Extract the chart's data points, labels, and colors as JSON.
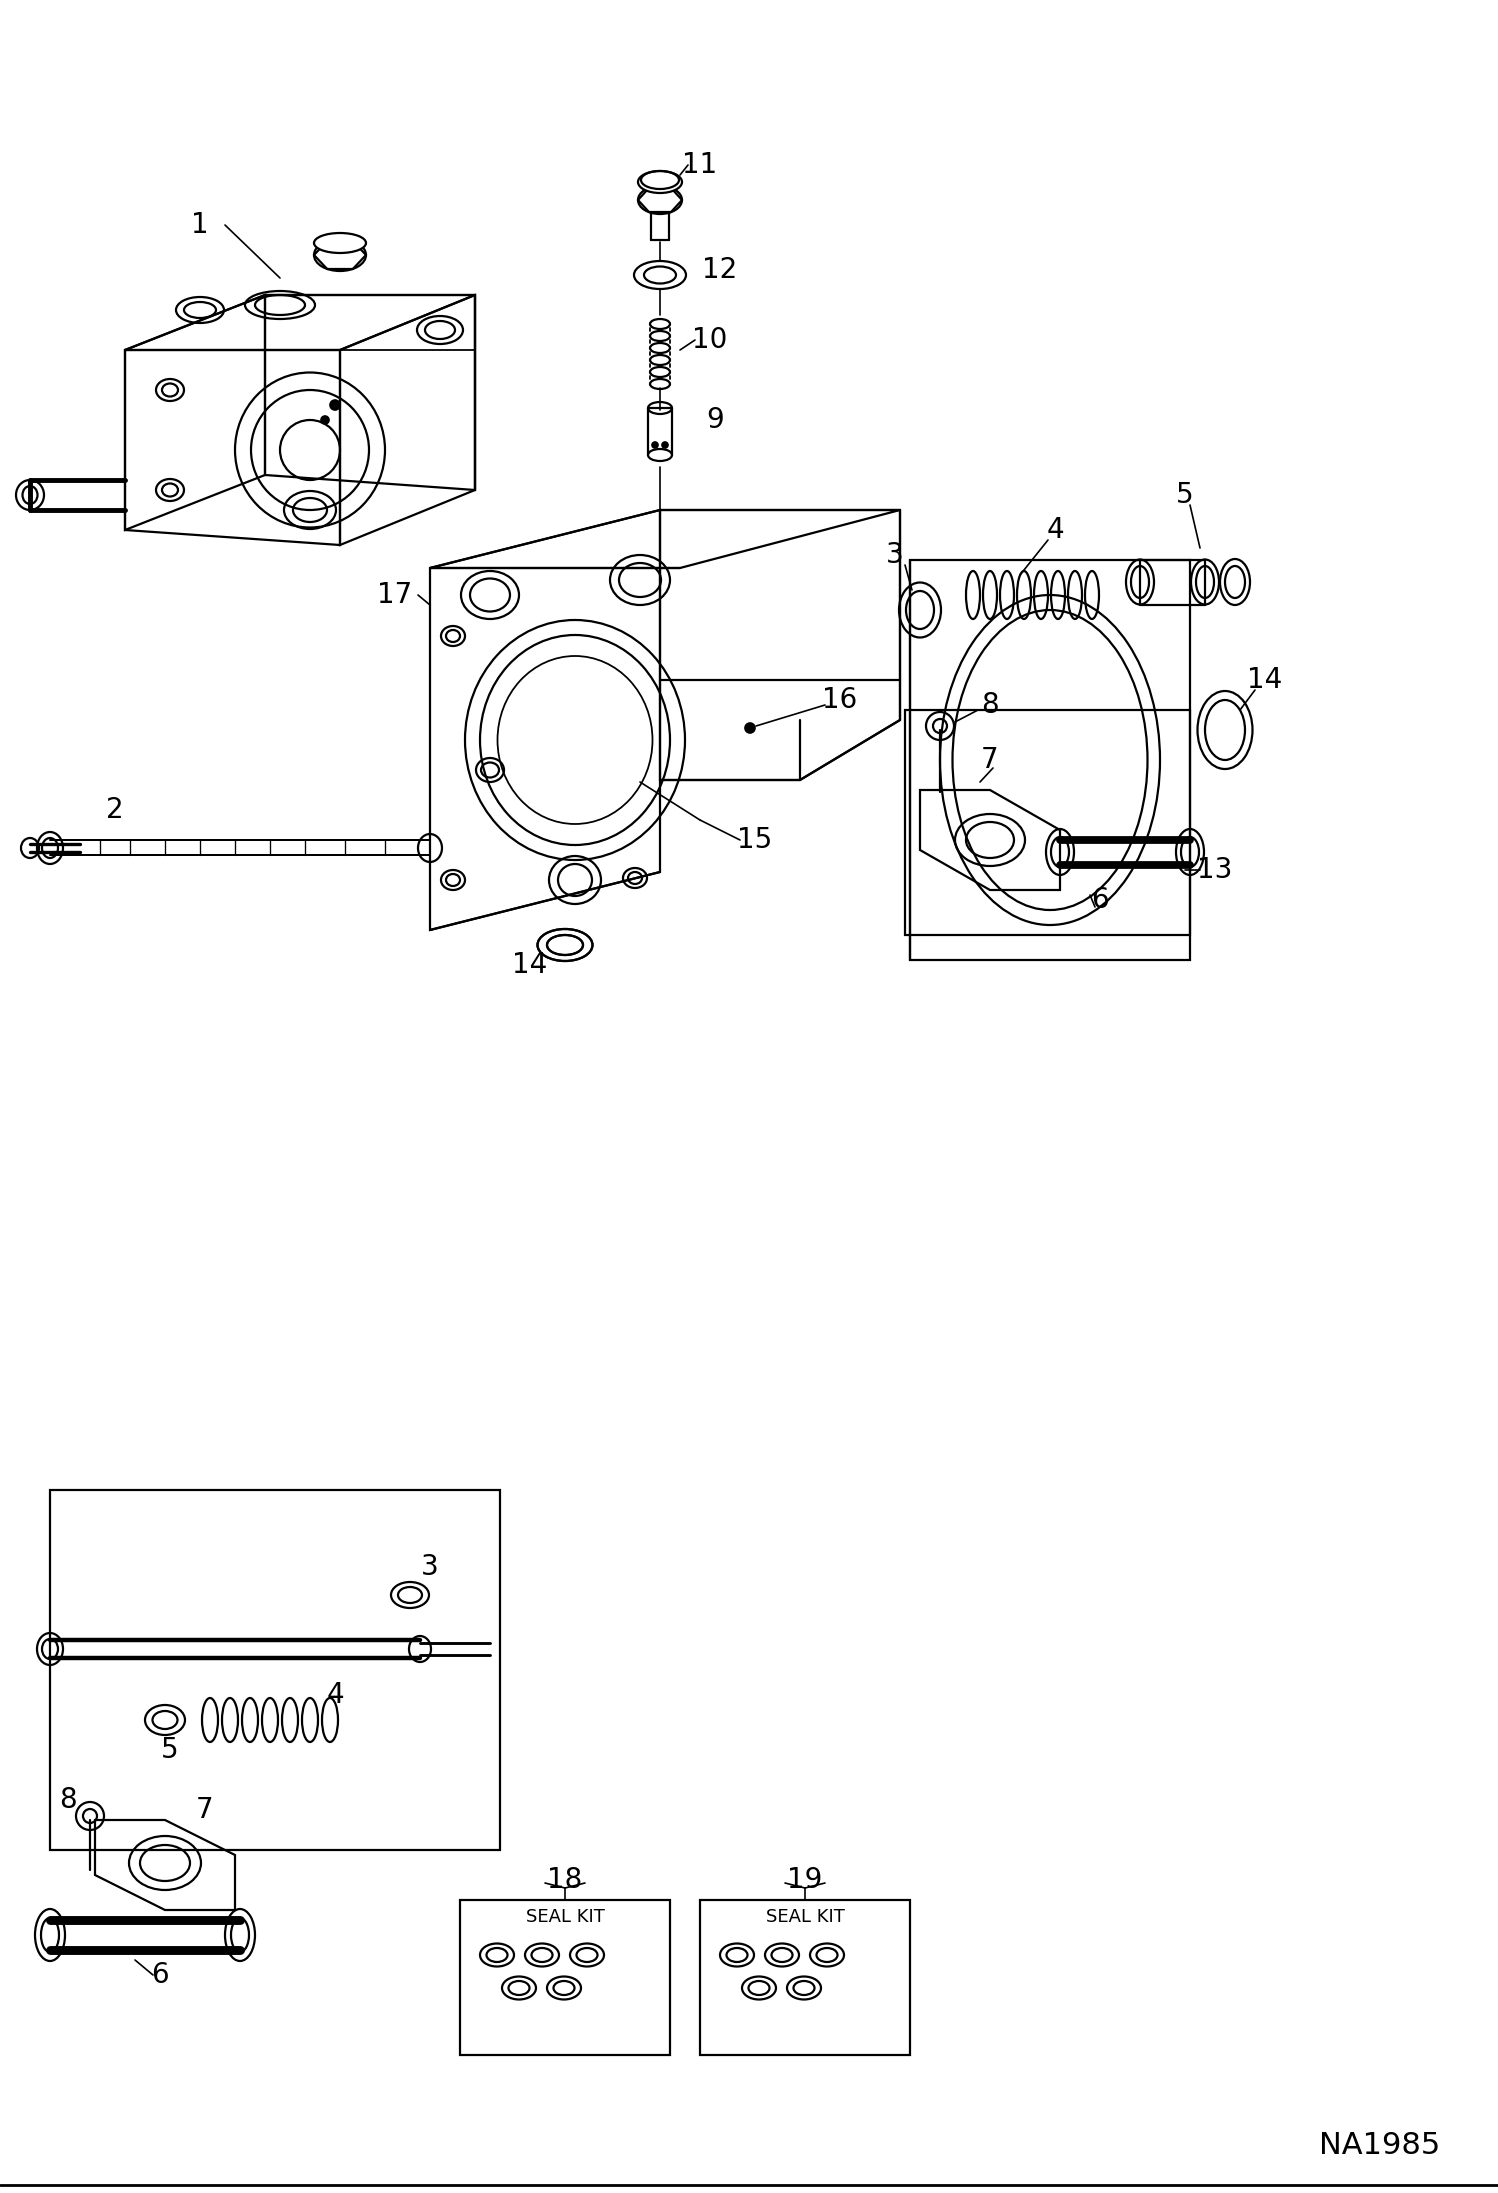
{
  "title": "NA1985",
  "bg": "#ffffff",
  "lc": "#000000",
  "lw": 1.6,
  "fontsize": 20
}
